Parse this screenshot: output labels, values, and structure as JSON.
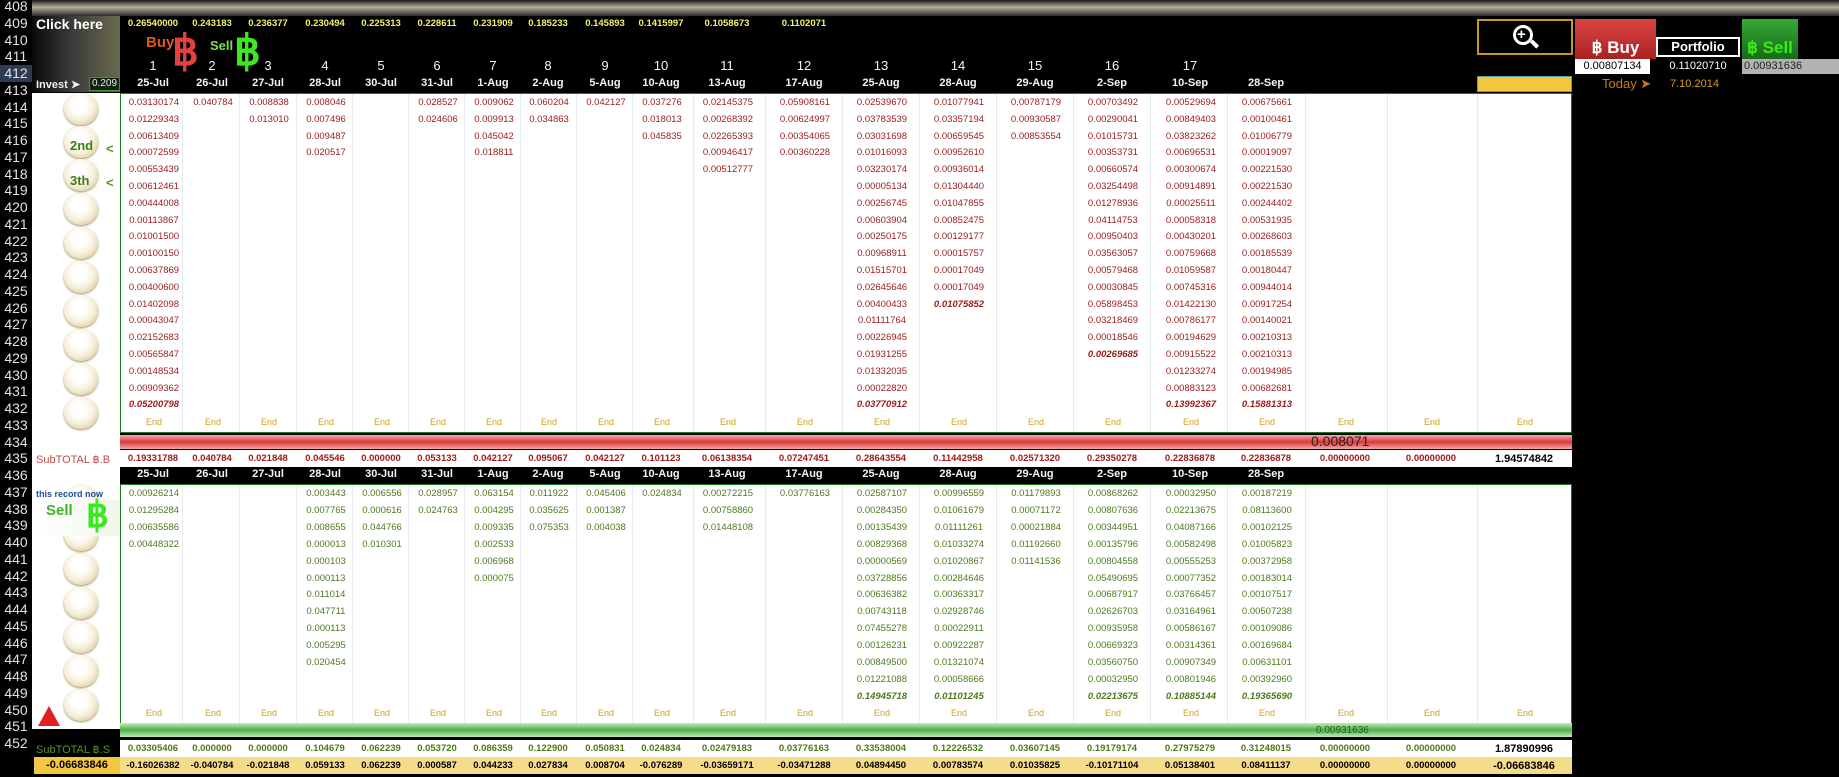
{
  "row_numbers": [
    "408",
    "409",
    "410",
    "411",
    "412",
    "413",
    "414",
    "415",
    "416",
    "417",
    "418",
    "419",
    "420",
    "421",
    "422",
    "423",
    "424",
    "425",
    "426",
    "427",
    "428",
    "429",
    "430",
    "431",
    "432",
    "433",
    "434",
    "435",
    "436",
    "437",
    "438",
    "439",
    "440",
    "441",
    "442",
    "443",
    "444",
    "445",
    "446",
    "447",
    "448",
    "449",
    "450",
    "451",
    "452"
  ],
  "selected_row": "412",
  "click_here": "Click here",
  "buy_label": "Buy",
  "sell_label": "Sell",
  "invest_label": "Invest ➤",
  "invest_value": "0.209",
  "btc_sell_label": "BTC ↓ Sell",
  "this_record_now": "this record now",
  "sell_badge": "Sell",
  "second_label": "2nd",
  "third_label": "3th",
  "subtotal_b": "SubTOTAL ฿.B",
  "subtotal_s": "SubTOTAL ฿.S",
  "bottom_left_value": "-0.06683846",
  "zoom_icon_label": "zoom",
  "buy_button": "฿ Buy",
  "portfolio_button": "Portfolio",
  "sell_button": "฿ Sell",
  "buy_value": "0.00807134",
  "portfolio_value": "0.11020710",
  "sell_value": "0.00931636",
  "today_label": "Today ➤",
  "today_date": "7.10.2014",
  "top_values": [
    "0.26540000",
    "0.243183",
    "0.236377",
    "0.230494",
    "0.225313",
    "0.228611",
    "0.231909",
    "0.185233",
    "0.145893",
    "0.1415997",
    "0.1058673",
    "0.1102071"
  ],
  "column_numbers": [
    "1",
    "2",
    "3",
    "4",
    "5",
    "6",
    "7",
    "8",
    "9",
    "10",
    "11",
    "12",
    "13",
    "14",
    "15",
    "16",
    "17"
  ],
  "dates": [
    "25-Jul",
    "26-Jul",
    "27-Jul",
    "28-Jul",
    "30-Jul",
    "31-Jul",
    "1-Aug",
    "2-Aug",
    "5-Aug",
    "10-Aug",
    "13-Aug",
    "17-Aug",
    "25-Aug",
    "28-Aug",
    "29-Aug",
    "2-Sep",
    "10-Sep",
    "28-Sep"
  ],
  "end_label": "End",
  "buy_columns": [
    [
      "0.03130174",
      "0.01229343",
      "0.00613409",
      "0.00072599",
      "0.00553439",
      "0.00612461",
      "0.00444008",
      "0.00113867",
      "0.01001500",
      "0.00100150",
      "0.00637869",
      "0.00400600",
      "0.01402098",
      "0.00043047",
      "0.02152683",
      "0.00565847",
      "0.00148534",
      "0.00909362",
      "0.05200798"
    ],
    [
      "0.040784"
    ],
    [
      "0.008838",
      "0.013010"
    ],
    [
      "0.008046",
      "0.007496",
      "0.009487",
      "0.020517"
    ],
    [],
    [
      "0.028527",
      "0.024606"
    ],
    [
      "0.009062",
      "0.009913",
      "0.045042",
      "0.018811"
    ],
    [
      "0.060204",
      "0.034863"
    ],
    [
      "0.042127"
    ],
    [
      "0.037276",
      "0.018013",
      "0.045835"
    ],
    [
      "0.02145375",
      "0.00268392",
      "0.02265393",
      "0.00946417",
      "0.00512777"
    ],
    [
      "0.05908161",
      "0.00624997",
      "0.00354065",
      "0.00360228"
    ],
    [
      "0.02539670",
      "0.03783539",
      "0.03031698",
      "0.01016093",
      "0.03230174",
      "0.00005134",
      "0.00256745",
      "0.00603904",
      "0.00250175",
      "0.00968911",
      "0.01515701",
      "0.02645646",
      "0.00400433",
      "0.01111764",
      "0.00226945",
      "0.01931255",
      "0.01332035",
      "0.00022820",
      "0.03770912"
    ],
    [
      "0.01077941",
      "0.03357194",
      "0.00659545",
      "0.00952610",
      "0.00936014",
      "0.01304440",
      "0.01047855",
      "0.00852475",
      "0.00129177",
      "0.00015757",
      "0.00017049",
      "0.00017049",
      "0.01075852"
    ],
    [
      "0.00787179",
      "0.00930587",
      "0.00853554"
    ],
    [
      "0.00703492",
      "0.00290041",
      "0.01015731",
      "0.00353731",
      "0.00660574",
      "0.03254498",
      "0.01278936",
      "0.04114753",
      "0.00950403",
      "0.03563057",
      "0.00579468",
      "0.00030845",
      "0.05898453",
      "0.03218469",
      "0.00018546",
      "0.00269685"
    ],
    [
      "0.00529694",
      "0.00849403",
      "0.03823262",
      "0.00696531",
      "0.00300674",
      "0.00914891",
      "0.00025511",
      "0.00058318",
      "0.00430201",
      "0.00759668",
      "0.01059587",
      "0.00745316",
      "0.01422130",
      "0.00786177",
      "0.00194629",
      "0.00915522",
      "0.01233274",
      "0.00883123",
      "0.13992367"
    ],
    [
      "0.00675661",
      "0.00100461",
      "0.01006779",
      "0.00019097",
      "0.00221530",
      "0.00221530",
      "0.00244402",
      "0.00531935",
      "0.00268603",
      "0.00185539",
      "0.00180447",
      "0.00944014",
      "0.00917254",
      "0.00140021",
      "0.00210313",
      "0.00210313",
      "0.00194985",
      "0.00682681",
      "0.15881313"
    ]
  ],
  "buy_total_flags": [
    true,
    false,
    false,
    false,
    false,
    false,
    false,
    false,
    false,
    false,
    false,
    false,
    true,
    false,
    false,
    false,
    true,
    true
  ],
  "subtotal_b_values": [
    "0.19331788",
    "0.040784",
    "0.021848",
    "0.045546",
    "0.000000",
    "0.053133",
    "0.042127",
    "0.095067",
    "0.042127",
    "0.101123",
    "0.06138354",
    "0.07247451",
    "0.28643554",
    "0.11442958",
    "0.02571320",
    "0.29350278",
    "0.22836878",
    "0.22836878",
    "0.00000000",
    "0.00000000",
    "1.94574842"
  ],
  "bar_b_value": "0.008071",
  "sell_columns": [
    [
      "0.00926214",
      "0.01295284",
      "0.00635586",
      "0.00448322"
    ],
    [],
    [],
    [
      "0.003443",
      "0.007765",
      "0.008655",
      "0.000013",
      "0.000103",
      "0.000113",
      "0.011014",
      "0.047711",
      "0.000113",
      "0.005295",
      "0.020454"
    ],
    [
      "0.006556",
      "0.000616",
      "0.044766",
      "0.010301"
    ],
    [
      "0.028957",
      "0.024763"
    ],
    [
      "0.063154",
      "0.004295",
      "0.009335",
      "0.002533",
      "0.006968",
      "0.000075"
    ],
    [
      "0.011922",
      "0.035625",
      "0.075353"
    ],
    [
      "0.045406",
      "0.001387",
      "0.004038"
    ],
    [
      "0.024834"
    ],
    [
      "0.00272215",
      "0.00758860",
      "0.01448108"
    ],
    [
      "0.03776163"
    ],
    [
      "0.02587107",
      "0.00284350",
      "0.00135439",
      "0.00829368",
      "0.00000569",
      "0.03728856",
      "0.00636382",
      "0.00743118",
      "0.07455278",
      "0.00126231",
      "0.00849500",
      "0.01221088",
      "0.14945718"
    ],
    [
      "0.00996559",
      "0.01061679",
      "0.01111261",
      "0.01033274",
      "0.01020867",
      "0.00284646",
      "0.00363317",
      "0.02928746",
      "0.00022911",
      "0.00922287",
      "0.01321074",
      "0.00058666",
      "0.01101245"
    ],
    [
      "0.01179893",
      "0.00071172",
      "0.00021884",
      "0.01192660",
      "0.01141536"
    ],
    [
      "0.00868262",
      "0.00807636",
      "0.00344951",
      "0.00135796",
      "0.00804558",
      "0.05490695",
      "0.00687917",
      "0.02626703",
      "0.00935958",
      "0.00669323",
      "0.03560750",
      "0.00032950",
      "0.02213675"
    ],
    [
      "0.00032950",
      "0.02213675",
      "0.04087166",
      "0.00582498",
      "0.00555253",
      "0.00077352",
      "0.03766457",
      "0.03164961",
      "0.00586167",
      "0.00314361",
      "0.00907349",
      "0.00801946",
      "0.10885144"
    ],
    [
      "0.00187219",
      "0.08113600",
      "0.00102125",
      "0.01005823",
      "0.00372958",
      "0.00183014",
      "0.00107517",
      "0.00507238",
      "0.00109086",
      "0.00169684",
      "0.00631101",
      "0.00392960",
      "0.19365690"
    ]
  ],
  "bar_s_value": "0.00931636",
  "subtotal_s_values": [
    "0.03305406",
    "0.000000",
    "0.000000",
    "0.104679",
    "0.062239",
    "0.053720",
    "0.086359",
    "0.122900",
    "0.050831",
    "0.024834",
    "0.02479183",
    "0.03776163",
    "0.33538004",
    "0.12226532",
    "0.03607145",
    "0.19179174",
    "0.27975279",
    "0.31248015",
    "0.00000000",
    "0.00000000",
    "1.87890996"
  ],
  "bottom_values": [
    "-0.16026382",
    "-0.040784",
    "-0.021848",
    "0.059133",
    "0.062239",
    "0.000587",
    "0.044233",
    "0.027834",
    "0.008704",
    "-0.076289",
    "-0.03659171",
    "-0.03471288",
    "0.04894450",
    "0.00783574",
    "0.01035825",
    "-0.10171104",
    "0.05138401",
    "0.08411137",
    "0.00000000",
    "0.00000000",
    "-0.06683846"
  ],
  "colors": {
    "buy_red": "#9b1a1a",
    "sell_green": "#4d7a1c",
    "header_yellow": "#f2f26e",
    "end_gold": "#d3a018",
    "today_gold": "#d3a018"
  }
}
